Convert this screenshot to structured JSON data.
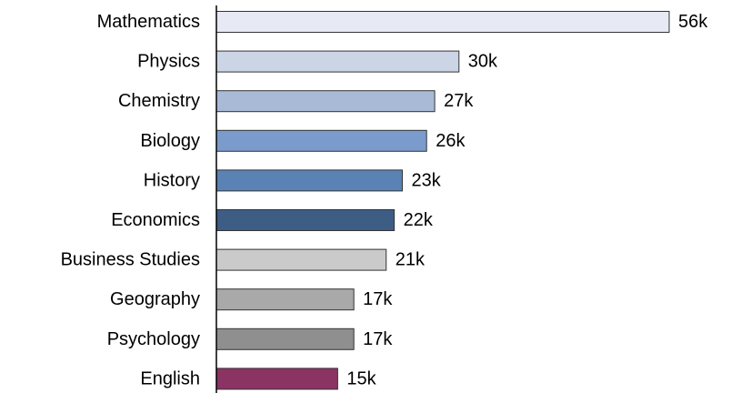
{
  "chart_data": {
    "type": "bar",
    "orientation": "horizontal",
    "categories": [
      "Mathematics",
      "Physics",
      "Chemistry",
      "Biology",
      "History",
      "Economics",
      "Business Studies",
      "Geography",
      "Psychology",
      "English"
    ],
    "values": [
      56,
      30,
      27,
      26,
      23,
      22,
      21,
      17,
      17,
      15
    ],
    "value_labels": [
      "56k",
      "30k",
      "27k",
      "26k",
      "23k",
      "22k",
      "21k",
      "17k",
      "17k",
      "15k"
    ],
    "bar_colors": [
      "#e7eaf4",
      "#ccd5e6",
      "#a9bad7",
      "#7a9bcb",
      "#5a82b4",
      "#3e5d85",
      "#cacaca",
      "#a9a9a9",
      "#8f8f8f",
      "#8b3463"
    ],
    "xlim": [
      0,
      56
    ],
    "grid": false,
    "title": "",
    "xlabel": "",
    "ylabel": ""
  }
}
